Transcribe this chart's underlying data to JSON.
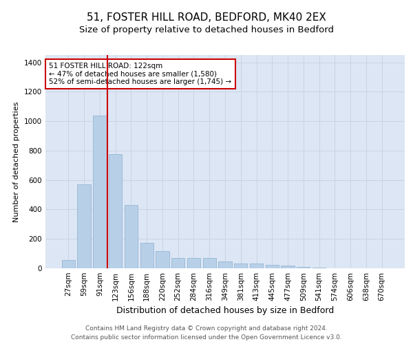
{
  "title1": "51, FOSTER HILL ROAD, BEDFORD, MK40 2EX",
  "title2": "Size of property relative to detached houses in Bedford",
  "xlabel": "Distribution of detached houses by size in Bedford",
  "ylabel": "Number of detached properties",
  "categories": [
    "27sqm",
    "59sqm",
    "91sqm",
    "123sqm",
    "156sqm",
    "188sqm",
    "220sqm",
    "252sqm",
    "284sqm",
    "316sqm",
    "349sqm",
    "381sqm",
    "413sqm",
    "445sqm",
    "477sqm",
    "509sqm",
    "541sqm",
    "574sqm",
    "606sqm",
    "638sqm",
    "670sqm"
  ],
  "values": [
    55,
    570,
    1040,
    775,
    430,
    175,
    115,
    70,
    70,
    70,
    45,
    35,
    35,
    25,
    18,
    8,
    6,
    0,
    0,
    0,
    0
  ],
  "bar_color": "#b8cfe8",
  "bar_edge_color": "#8aafd0",
  "grid_color": "#c8d4e4",
  "background_color": "#dde6f4",
  "vline_x_idx": 3,
  "vline_color": "#cc0000",
  "annotation_text": "51 FOSTER HILL ROAD: 122sqm\n← 47% of detached houses are smaller (1,580)\n52% of semi-detached houses are larger (1,745) →",
  "annotation_box_color": "#ffffff",
  "annotation_box_edge": "#cc0000",
  "ylim": [
    0,
    1450
  ],
  "yticks": [
    0,
    200,
    400,
    600,
    800,
    1000,
    1200,
    1400
  ],
  "footer_text": "Contains HM Land Registry data © Crown copyright and database right 2024.\nContains public sector information licensed under the Open Government Licence v3.0.",
  "title1_fontsize": 11,
  "title2_fontsize": 9.5,
  "xlabel_fontsize": 9,
  "ylabel_fontsize": 8,
  "tick_fontsize": 7.5,
  "annotation_fontsize": 7.5,
  "footer_fontsize": 6.5
}
